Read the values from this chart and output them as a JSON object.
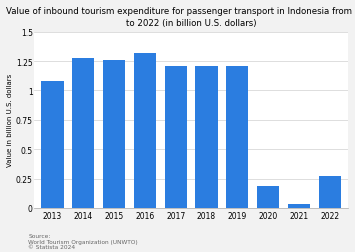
{
  "title": "Value of inbound tourism expenditure for passenger transport in Indonesia from 2013\nto 2022 (in billion U.S. dollars)",
  "years": [
    "2013",
    "2014",
    "2015",
    "2016",
    "2017",
    "2018",
    "2019",
    "2020",
    "2021",
    "2022"
  ],
  "values": [
    1.08,
    1.28,
    1.26,
    1.32,
    1.21,
    1.21,
    1.21,
    0.19,
    0.03,
    0.27
  ],
  "bar_color": "#2b7de0",
  "ylabel": "Value in billion U.S. dollars",
  "ylim": [
    0,
    1.5
  ],
  "yticks": [
    0,
    0.25,
    0.5,
    0.75,
    1.0,
    1.25,
    1.5
  ],
  "ytick_labels": [
    "0",
    "0.25",
    "0.5",
    "0.75",
    "1",
    "1.25",
    "1.5"
  ],
  "source_text": "Source:\nWorld Tourism Organization (UNWTO)\n© Statista 2024",
  "title_fontsize": 6.2,
  "ylabel_fontsize": 5.0,
  "tick_fontsize": 5.5,
  "source_fontsize": 4.2,
  "bg_color": "#f2f2f2",
  "plot_bg_color": "#ffffff",
  "bar_width": 0.72
}
